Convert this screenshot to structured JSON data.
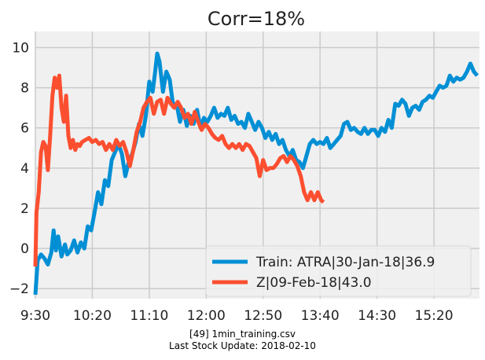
{
  "chart_data": {
    "type": "line",
    "title": "Corr=18%",
    "xlabel": "",
    "ylabel": "",
    "x_ticks": [
      "9:30",
      "10:20",
      "11:10",
      "12:00",
      "12:50",
      "13:40",
      "14:30",
      "15:20"
    ],
    "y_ticks": [
      "−2",
      "0",
      "2",
      "4",
      "6",
      "8",
      "10"
    ],
    "ylim": [
      -2.5,
      10.8
    ],
    "xlim": [
      "9:30",
      "16:00"
    ],
    "grid": true,
    "legend_position": "lower-right",
    "colors": {
      "plot_bg": "#f0f0f0",
      "grid": "#cbcbcb"
    },
    "series": [
      {
        "name": "Train: ATRA|30-Jan-18|36.9",
        "color": "#008fd5",
        "points": [
          [
            "9:30",
            -2.3
          ],
          [
            "9:32",
            -0.6
          ],
          [
            "9:35",
            -0.3
          ],
          [
            "9:38",
            -0.5
          ],
          [
            "9:41",
            -0.8
          ],
          [
            "9:44",
            -0.2
          ],
          [
            "9:46",
            0.9
          ],
          [
            "9:48",
            -0.1
          ],
          [
            "9:50",
            0.6
          ],
          [
            "9:53",
            -0.4
          ],
          [
            "9:56",
            0.2
          ],
          [
            "9:58",
            -0.3
          ],
          [
            "10:01",
            -0.1
          ],
          [
            "10:04",
            0.4
          ],
          [
            "10:07",
            -0.2
          ],
          [
            "10:10",
            0.3
          ],
          [
            "10:13",
            0.0
          ],
          [
            "10:16",
            1.1
          ],
          [
            "10:19",
            0.9
          ],
          [
            "10:22",
            1.8
          ],
          [
            "10:25",
            2.8
          ],
          [
            "10:28",
            2.2
          ],
          [
            "10:31",
            3.4
          ],
          [
            "10:34",
            3.1
          ],
          [
            "10:37",
            4.4
          ],
          [
            "10:40",
            4.8
          ],
          [
            "10:43",
            5.2
          ],
          [
            "10:46",
            4.7
          ],
          [
            "10:49",
            3.6
          ],
          [
            "10:52",
            4.3
          ],
          [
            "10:55",
            4.7
          ],
          [
            "10:58",
            5.3
          ],
          [
            "11:01",
            6.2
          ],
          [
            "11:04",
            5.6
          ],
          [
            "11:07",
            6.6
          ],
          [
            "11:10",
            8.3
          ],
          [
            "11:13",
            7.8
          ],
          [
            "11:15",
            8.7
          ],
          [
            "11:17",
            9.7
          ],
          [
            "11:19",
            9.3
          ],
          [
            "11:22",
            7.8
          ],
          [
            "11:25",
            8.8
          ],
          [
            "11:28",
            8.4
          ],
          [
            "11:31",
            7.1
          ],
          [
            "11:34",
            7.2
          ],
          [
            "11:37",
            6.3
          ],
          [
            "11:40",
            6.9
          ],
          [
            "11:43",
            6.1
          ],
          [
            "11:46",
            6.6
          ],
          [
            "11:49",
            6.2
          ],
          [
            "11:52",
            6.9
          ],
          [
            "11:55",
            6.0
          ],
          [
            "11:58",
            6.5
          ],
          [
            "12:01",
            6.3
          ],
          [
            "12:04",
            6.6
          ],
          [
            "12:07",
            7.0
          ],
          [
            "12:10",
            6.5
          ],
          [
            "12:13",
            6.7
          ],
          [
            "12:16",
            6.6
          ],
          [
            "12:19",
            7.0
          ],
          [
            "12:22",
            6.4
          ],
          [
            "12:25",
            6.6
          ],
          [
            "12:28",
            6.2
          ],
          [
            "12:31",
            6.3
          ],
          [
            "12:34",
            6.0
          ],
          [
            "12:37",
            6.7
          ],
          [
            "12:40",
            6.3
          ],
          [
            "12:43",
            5.9
          ],
          [
            "12:46",
            6.3
          ],
          [
            "12:49",
            6.0
          ],
          [
            "12:52",
            5.5
          ],
          [
            "12:55",
            5.8
          ],
          [
            "12:58",
            5.4
          ],
          [
            "13:01",
            5.7
          ],
          [
            "13:04",
            5.2
          ],
          [
            "13:07",
            5.4
          ],
          [
            "13:10",
            4.9
          ],
          [
            "13:13",
            4.6
          ],
          [
            "13:16",
            4.9
          ],
          [
            "13:19",
            4.4
          ],
          [
            "13:22",
            4.3
          ],
          [
            "13:25",
            4.0
          ],
          [
            "13:28",
            4.6
          ],
          [
            "13:31",
            5.2
          ],
          [
            "13:34",
            5.4
          ],
          [
            "13:37",
            5.2
          ],
          [
            "13:40",
            5.3
          ],
          [
            "13:43",
            5.2
          ],
          [
            "13:46",
            5.5
          ],
          [
            "13:49",
            5.0
          ],
          [
            "13:52",
            5.2
          ],
          [
            "13:55",
            5.4
          ],
          [
            "13:58",
            5.6
          ],
          [
            "14:01",
            6.2
          ],
          [
            "14:04",
            6.3
          ],
          [
            "14:07",
            5.9
          ],
          [
            "14:10",
            6.0
          ],
          [
            "14:13",
            5.8
          ],
          [
            "14:16",
            5.7
          ],
          [
            "14:19",
            6.0
          ],
          [
            "14:22",
            5.7
          ],
          [
            "14:25",
            5.9
          ],
          [
            "14:28",
            5.9
          ],
          [
            "14:31",
            5.6
          ],
          [
            "14:34",
            6.0
          ],
          [
            "14:37",
            5.8
          ],
          [
            "14:40",
            6.4
          ],
          [
            "14:43",
            6.0
          ],
          [
            "14:46",
            7.2
          ],
          [
            "14:49",
            7.1
          ],
          [
            "14:52",
            7.4
          ],
          [
            "14:55",
            7.2
          ],
          [
            "14:58",
            6.6
          ],
          [
            "15:01",
            7.0
          ],
          [
            "15:04",
            7.1
          ],
          [
            "15:07",
            6.9
          ],
          [
            "15:10",
            7.3
          ],
          [
            "15:13",
            7.4
          ],
          [
            "15:16",
            7.6
          ],
          [
            "15:19",
            7.5
          ],
          [
            "15:22",
            7.8
          ],
          [
            "15:25",
            8.1
          ],
          [
            "15:28",
            8.0
          ],
          [
            "15:31",
            8.1
          ],
          [
            "15:34",
            8.6
          ],
          [
            "15:37",
            8.3
          ],
          [
            "15:40",
            8.5
          ],
          [
            "15:43",
            8.4
          ],
          [
            "15:46",
            8.5
          ],
          [
            "15:49",
            8.8
          ],
          [
            "15:52",
            9.2
          ],
          [
            "15:55",
            8.8
          ],
          [
            "15:58",
            8.6
          ]
        ]
      },
      {
        "name": "Z|09-Feb-18|43.0",
        "color": "#fc4f30",
        "points": [
          [
            "9:30",
            -0.9
          ],
          [
            "9:31",
            1.8
          ],
          [
            "9:33",
            2.8
          ],
          [
            "9:35",
            4.8
          ],
          [
            "9:37",
            5.3
          ],
          [
            "9:39",
            5.1
          ],
          [
            "9:41",
            3.9
          ],
          [
            "9:43",
            5.6
          ],
          [
            "9:45",
            7.6
          ],
          [
            "9:47",
            8.5
          ],
          [
            "9:49",
            8.0
          ],
          [
            "9:51",
            8.6
          ],
          [
            "9:53",
            7.0
          ],
          [
            "9:55",
            6.3
          ],
          [
            "9:57",
            7.6
          ],
          [
            "9:59",
            5.6
          ],
          [
            "10:01",
            5.0
          ],
          [
            "10:03",
            5.4
          ],
          [
            "10:05",
            4.9
          ],
          [
            "10:07",
            5.2
          ],
          [
            "10:09",
            5.1
          ],
          [
            "10:11",
            5.3
          ],
          [
            "10:14",
            5.4
          ],
          [
            "10:17",
            5.5
          ],
          [
            "10:20",
            5.3
          ],
          [
            "10:23",
            5.4
          ],
          [
            "10:26",
            5.2
          ],
          [
            "10:29",
            5.3
          ],
          [
            "10:32",
            4.9
          ],
          [
            "10:35",
            5.2
          ],
          [
            "10:38",
            4.9
          ],
          [
            "10:41",
            5.4
          ],
          [
            "10:44",
            5.1
          ],
          [
            "10:47",
            5.3
          ],
          [
            "10:50",
            4.8
          ],
          [
            "10:53",
            4.1
          ],
          [
            "10:56",
            4.9
          ],
          [
            "10:59",
            5.8
          ],
          [
            "11:02",
            6.3
          ],
          [
            "11:05",
            7.0
          ],
          [
            "11:08",
            7.3
          ],
          [
            "11:11",
            7.5
          ],
          [
            "11:14",
            6.7
          ],
          [
            "11:17",
            7.3
          ],
          [
            "11:20",
            7.4
          ],
          [
            "11:23",
            6.7
          ],
          [
            "11:26",
            7.5
          ],
          [
            "11:29",
            7.2
          ],
          [
            "11:32",
            7.0
          ],
          [
            "11:35",
            7.3
          ],
          [
            "11:38",
            7.0
          ],
          [
            "11:41",
            6.5
          ],
          [
            "11:44",
            6.7
          ],
          [
            "11:47",
            6.2
          ],
          [
            "11:50",
            6.8
          ],
          [
            "11:53",
            6.3
          ],
          [
            "11:56",
            5.9
          ],
          [
            "11:59",
            6.2
          ],
          [
            "12:02",
            6.0
          ],
          [
            "12:05",
            5.7
          ],
          [
            "12:08",
            5.5
          ],
          [
            "12:11",
            5.4
          ],
          [
            "12:14",
            5.6
          ],
          [
            "12:17",
            5.2
          ],
          [
            "12:20",
            5.0
          ],
          [
            "12:23",
            5.2
          ],
          [
            "12:26",
            5.0
          ],
          [
            "12:29",
            5.2
          ],
          [
            "12:32",
            4.9
          ],
          [
            "12:35",
            5.2
          ],
          [
            "12:38",
            5.1
          ],
          [
            "12:41",
            4.8
          ],
          [
            "12:44",
            4.5
          ],
          [
            "12:47",
            3.6
          ],
          [
            "12:50",
            4.4
          ],
          [
            "12:53",
            3.9
          ],
          [
            "12:56",
            4.0
          ],
          [
            "12:59",
            4.0
          ],
          [
            "13:02",
            4.2
          ],
          [
            "13:05",
            4.5
          ],
          [
            "13:08",
            4.6
          ],
          [
            "13:11",
            4.3
          ],
          [
            "13:14",
            4.6
          ],
          [
            "13:17",
            4.4
          ],
          [
            "13:20",
            4.1
          ],
          [
            "13:23",
            3.6
          ],
          [
            "13:26",
            2.8
          ],
          [
            "13:29",
            2.4
          ],
          [
            "13:32",
            2.8
          ],
          [
            "13:35",
            2.4
          ],
          [
            "13:38",
            2.8
          ],
          [
            "13:41",
            2.4
          ],
          [
            "13:43",
            2.3
          ]
        ]
      }
    ]
  },
  "footer": {
    "line1": "[49] 1min_training.csv",
    "line2": "Last Stock Update: 2018-02-10"
  }
}
